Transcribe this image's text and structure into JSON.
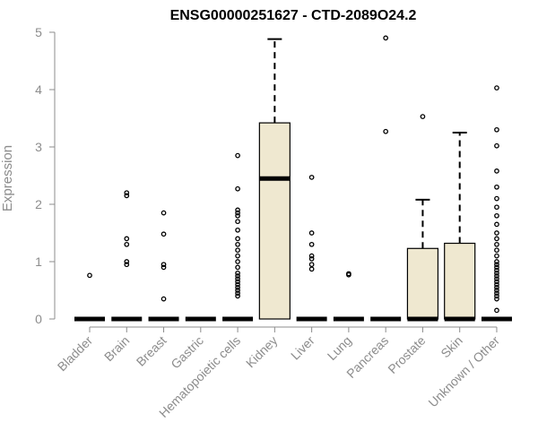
{
  "chart_data": {
    "type": "boxplot",
    "title": "ENSG00000251627 - CTD-2089O24.2",
    "ylabel": "Expression",
    "xlabel": "",
    "ylim": [
      0,
      5
    ],
    "yticks": [
      0,
      1,
      2,
      3,
      4,
      5
    ],
    "box_fill": "#efe8d0",
    "categories": [
      "Bladder",
      "Brain",
      "Breast",
      "Gastric",
      "Hematopoietic cells",
      "Kidney",
      "Liver",
      "Lung",
      "Pancreas",
      "Prostate",
      "Skin",
      "Unknown / Other"
    ],
    "boxes": [
      {
        "q1": 0,
        "median": 0,
        "q3": 0,
        "whisker_low": 0,
        "whisker_high": 0,
        "outliers": [
          0.76
        ]
      },
      {
        "q1": 0,
        "median": 0,
        "q3": 0,
        "whisker_low": 0,
        "whisker_high": 0,
        "outliers": [
          0.95,
          1.0,
          1.3,
          1.4,
          2.15,
          2.2
        ]
      },
      {
        "q1": 0,
        "median": 0,
        "q3": 0,
        "whisker_low": 0,
        "whisker_high": 0,
        "outliers": [
          0.35,
          0.9,
          0.95,
          1.48,
          1.85
        ]
      },
      {
        "q1": 0,
        "median": 0,
        "q3": 0,
        "whisker_low": 0,
        "whisker_high": 0,
        "outliers": []
      },
      {
        "q1": 0,
        "median": 0,
        "q3": 0,
        "whisker_low": 0,
        "whisker_high": 0,
        "outliers": [
          0.4,
          0.45,
          0.5,
          0.55,
          0.6,
          0.65,
          0.7,
          0.75,
          0.8,
          0.9,
          1.0,
          1.1,
          1.2,
          1.3,
          1.4,
          1.55,
          1.7,
          1.8,
          1.85,
          1.9,
          2.27,
          2.85
        ]
      },
      {
        "q1": 0,
        "median": 2.45,
        "q3": 3.42,
        "whisker_low": 0,
        "whisker_high": 4.88,
        "outliers": []
      },
      {
        "q1": 0,
        "median": 0,
        "q3": 0,
        "whisker_low": 0,
        "whisker_high": 0,
        "outliers": [
          0.87,
          0.95,
          1.05,
          1.1,
          1.3,
          1.5,
          2.47
        ]
      },
      {
        "q1": 0,
        "median": 0,
        "q3": 0,
        "whisker_low": 0,
        "whisker_high": 0,
        "outliers": [
          0.77,
          0.79
        ]
      },
      {
        "q1": 0,
        "median": 0,
        "q3": 0,
        "whisker_low": 0,
        "whisker_high": 0,
        "outliers": [
          3.27,
          4.9
        ]
      },
      {
        "q1": 0,
        "median": 0,
        "q3": 1.23,
        "whisker_low": 0,
        "whisker_high": 2.08,
        "outliers": [
          3.53
        ]
      },
      {
        "q1": 0,
        "median": 0,
        "q3": 1.32,
        "whisker_low": 0,
        "whisker_high": 3.25,
        "outliers": []
      },
      {
        "q1": 0,
        "median": 0,
        "q3": 0,
        "whisker_low": 0,
        "whisker_high": 0,
        "outliers": [
          0.15,
          0.35,
          0.4,
          0.45,
          0.5,
          0.55,
          0.6,
          0.65,
          0.7,
          0.75,
          0.8,
          0.85,
          0.9,
          0.95,
          1.0,
          1.1,
          1.2,
          1.3,
          1.4,
          1.5,
          1.65,
          1.8,
          1.95,
          2.1,
          2.3,
          2.58,
          3.02,
          3.3,
          4.03
        ]
      }
    ]
  }
}
